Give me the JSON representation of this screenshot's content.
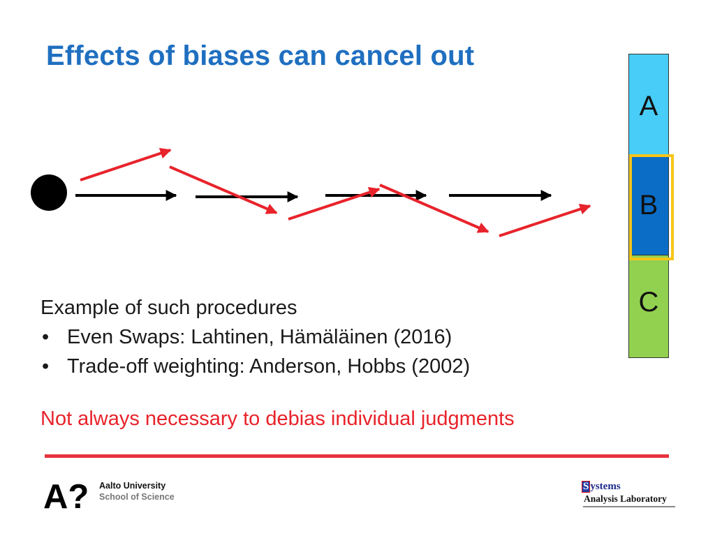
{
  "slide": {
    "title": "Effects of biases can cancel out",
    "example_heading": "Example of such procedures",
    "bullets": [
      "Even Swaps: Lahtinen, Hämäläinen (2016)",
      "Trade-off weighting: Anderson, Hobbs (2002)"
    ],
    "note": "Not always necessary to debias individual judgments"
  },
  "scale": {
    "labels": [
      "A",
      "B",
      "C"
    ],
    "highlighted": "B",
    "colors": {
      "a": "#47cdf7",
      "b": "#0b6dc6",
      "c": "#92d150",
      "highlight": "#f5c518"
    }
  },
  "diagram": {
    "arrow_colors": {
      "unbiased": "#000000",
      "biased": "#e8232b"
    }
  },
  "footer": {
    "aalto_mark": "A?",
    "aalto_name": "Aalto University",
    "aalto_school": "School of Science",
    "sal_line1_initial": "S",
    "sal_line1_rest": "ystems",
    "sal_line2": "Analysis Laboratory",
    "rule_color": "#e8323e"
  }
}
